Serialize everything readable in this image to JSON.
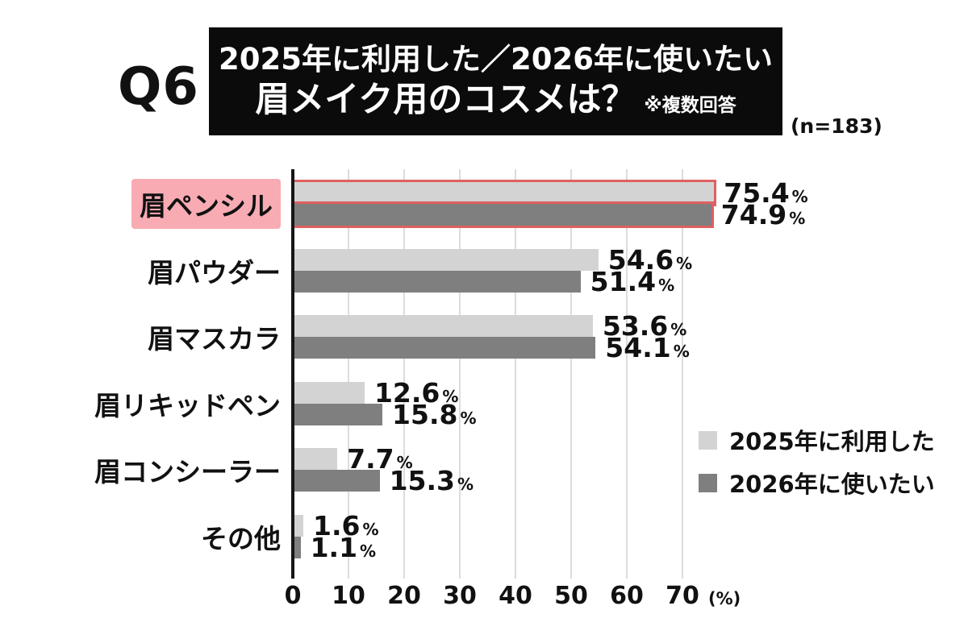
{
  "header": {
    "question_number": "Q6",
    "title_line1": "2025年に利用した／2026年に使いたい",
    "title_line2": "眉メイク用のコスメは？",
    "note": "※複数回答",
    "sample_size": "(n=183)"
  },
  "chart_data": {
    "type": "bar",
    "orientation": "horizontal",
    "title": "2025年に利用した／2026年に使いたい 眉メイク用のコスメは？",
    "categories": [
      "眉ペンシル",
      "眉パウダー",
      "眉マスカラ",
      "眉リキッドペン",
      "眉コンシーラー",
      "その他"
    ],
    "series": [
      {
        "name": "2025年に利用した",
        "color": "#d3d3d3",
        "values": [
          75.4,
          54.6,
          53.6,
          12.6,
          7.7,
          1.6
        ]
      },
      {
        "name": "2026年に使いたい",
        "color": "#7f7f7f",
        "values": [
          74.9,
          51.4,
          54.1,
          15.8,
          15.3,
          1.1
        ]
      }
    ],
    "value_suffix": "%",
    "x_ticks": [
      0,
      10,
      20,
      30,
      40,
      50,
      60,
      70
    ],
    "x_unit": "(%)",
    "xlim": [
      0,
      75
    ],
    "grid": true,
    "legend_position": "right-middle",
    "highlight": {
      "category_index": 0,
      "label_bg": "#f8abb3",
      "bar_outline": "#e06060"
    },
    "colors": {
      "axis": "#161616",
      "gridline": "#dcdcdc",
      "title_box_bg": "#0b0b0b",
      "title_text": "#ffffff",
      "background": "#ffffff"
    }
  }
}
